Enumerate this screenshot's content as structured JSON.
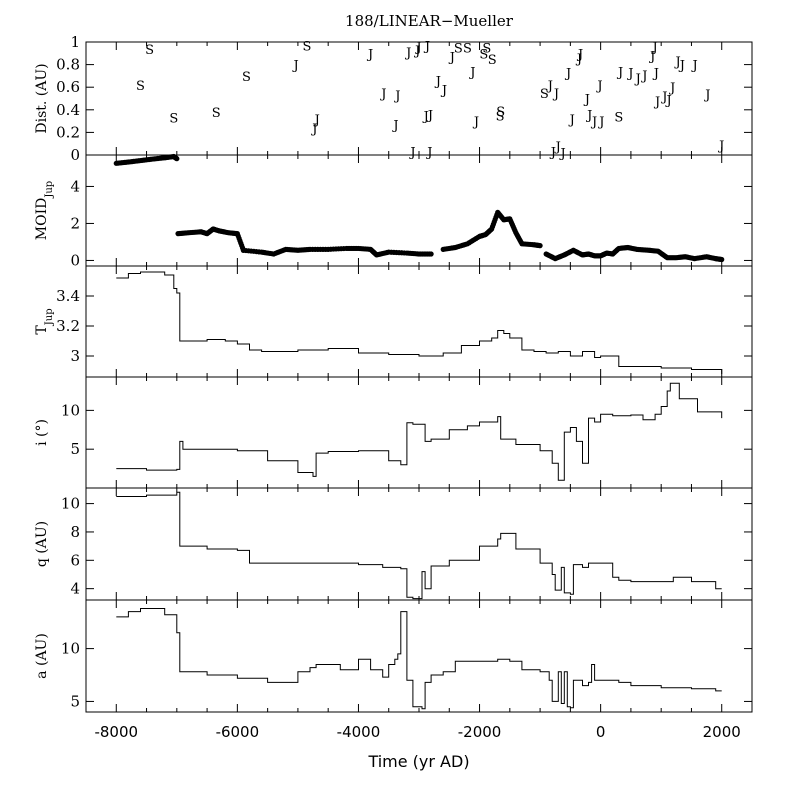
{
  "chart_data": {
    "title": "188/LINEAR−Mueller",
    "xlabel": "Time (yr AD)",
    "xlim": [
      -8500,
      2500
    ],
    "x_ticks": [
      -8000,
      -6000,
      -4000,
      -2000,
      0,
      2000
    ],
    "x_tick_labels": [
      "-8000",
      "-6000",
      "-4000",
      "-2000",
      "0",
      "2000"
    ],
    "panels": [
      {
        "id": "dist",
        "type": "scatter",
        "ylabel": "Dist. (AU)",
        "ylim": [
          0,
          1
        ],
        "y_ticks": [
          0,
          0.2,
          0.4,
          0.6,
          0.8,
          1
        ],
        "y_tick_labels": [
          "0",
          "0.2",
          "0.4",
          "0.6",
          "0.8",
          "1"
        ],
        "encounters": [
          {
            "x": -7450,
            "y": 0.94,
            "planet": "S"
          },
          {
            "x": -7600,
            "y": 0.62,
            "planet": "S"
          },
          {
            "x": -7050,
            "y": 0.33,
            "planet": "S"
          },
          {
            "x": -6350,
            "y": 0.38,
            "planet": "S"
          },
          {
            "x": -5850,
            "y": 0.7,
            "planet": "S"
          },
          {
            "x": -5030,
            "y": 0.8,
            "planet": "J"
          },
          {
            "x": -4850,
            "y": 0.97,
            "planet": "S"
          },
          {
            "x": -4680,
            "y": 0.32,
            "planet": "J"
          },
          {
            "x": -4720,
            "y": 0.24,
            "planet": "J"
          },
          {
            "x": -3800,
            "y": 0.9,
            "planet": "J"
          },
          {
            "x": -3580,
            "y": 0.55,
            "planet": "J"
          },
          {
            "x": -3350,
            "y": 0.53,
            "planet": "J"
          },
          {
            "x": -3380,
            "y": 0.27,
            "planet": "J"
          },
          {
            "x": -3170,
            "y": 0.91,
            "planet": "J"
          },
          {
            "x": -3020,
            "y": 0.93,
            "planet": "J"
          },
          {
            "x": -3000,
            "y": 0.96,
            "planet": "J"
          },
          {
            "x": -2860,
            "y": 0.97,
            "planet": "J"
          },
          {
            "x": -3100,
            "y": 0.03,
            "planet": "J"
          },
          {
            "x": -2880,
            "y": 0.35,
            "planet": "J"
          },
          {
            "x": -2810,
            "y": 0.36,
            "planet": "J"
          },
          {
            "x": -2680,
            "y": 0.66,
            "planet": "J"
          },
          {
            "x": -2580,
            "y": 0.58,
            "planet": "J"
          },
          {
            "x": -2450,
            "y": 0.87,
            "planet": "J"
          },
          {
            "x": -2350,
            "y": 0.95,
            "planet": "S"
          },
          {
            "x": -2200,
            "y": 0.95,
            "planet": "S"
          },
          {
            "x": -2110,
            "y": 0.74,
            "planet": "J"
          },
          {
            "x": -2050,
            "y": 0.3,
            "planet": "J"
          },
          {
            "x": -1880,
            "y": 0.95,
            "planet": "S"
          },
          {
            "x": -1930,
            "y": 0.9,
            "planet": "S"
          },
          {
            "x": -1790,
            "y": 0.85,
            "planet": "S"
          },
          {
            "x": -1650,
            "y": 0.39,
            "planet": "S"
          },
          {
            "x": -1660,
            "y": 0.35,
            "planet": "S"
          },
          {
            "x": -2820,
            "y": 0.03,
            "planet": "J"
          },
          {
            "x": -930,
            "y": 0.55,
            "planet": "S"
          },
          {
            "x": -830,
            "y": 0.62,
            "planet": "J"
          },
          {
            "x": -730,
            "y": 0.55,
            "planet": "J"
          },
          {
            "x": -780,
            "y": 0.03,
            "planet": "J"
          },
          {
            "x": -700,
            "y": 0.08,
            "planet": "J"
          },
          {
            "x": -620,
            "y": 0.02,
            "planet": "J"
          },
          {
            "x": -530,
            "y": 0.73,
            "planet": "J"
          },
          {
            "x": -470,
            "y": 0.32,
            "planet": "J"
          },
          {
            "x": -350,
            "y": 0.86,
            "planet": "J"
          },
          {
            "x": -330,
            "y": 0.9,
            "planet": "J"
          },
          {
            "x": -220,
            "y": 0.5,
            "planet": "J"
          },
          {
            "x": -180,
            "y": 0.36,
            "planet": "J"
          },
          {
            "x": -100,
            "y": 0.3,
            "planet": "J"
          },
          {
            "x": 20,
            "y": 0.3,
            "planet": "J"
          },
          {
            "x": -10,
            "y": 0.62,
            "planet": "J"
          },
          {
            "x": 300,
            "y": 0.34,
            "planet": "S"
          },
          {
            "x": 330,
            "y": 0.74,
            "planet": "J"
          },
          {
            "x": 500,
            "y": 0.73,
            "planet": "J"
          },
          {
            "x": 620,
            "y": 0.68,
            "planet": "J"
          },
          {
            "x": 730,
            "y": 0.71,
            "planet": "J"
          },
          {
            "x": 860,
            "y": 0.88,
            "planet": "J"
          },
          {
            "x": 900,
            "y": 0.96,
            "planet": "J"
          },
          {
            "x": 920,
            "y": 0.73,
            "planet": "J"
          },
          {
            "x": 940,
            "y": 0.48,
            "planet": "J"
          },
          {
            "x": 1060,
            "y": 0.52,
            "planet": "J"
          },
          {
            "x": 1130,
            "y": 0.49,
            "planet": "J"
          },
          {
            "x": 1190,
            "y": 0.6,
            "planet": "J"
          },
          {
            "x": 1280,
            "y": 0.83,
            "planet": "J"
          },
          {
            "x": 1350,
            "y": 0.8,
            "planet": "J"
          },
          {
            "x": 1560,
            "y": 0.8,
            "planet": "J"
          },
          {
            "x": 1770,
            "y": 0.54,
            "planet": "J"
          },
          {
            "x": 2000,
            "y": 0.09,
            "planet": "J"
          }
        ]
      },
      {
        "id": "moid",
        "type": "scatter",
        "ylabel": "MOID",
        "ylabel_subscript": "Jup",
        "ylim": [
          -0.3,
          5.7
        ],
        "y_ticks": [
          0,
          2,
          4
        ],
        "y_tick_labels": [
          "0",
          "2",
          "4"
        ],
        "segments": [
          {
            "x": [
              -8000,
              -7800,
              -7600,
              -7400,
              -7200,
              -7050,
              -7000
            ],
            "y": [
              5.25,
              5.32,
              5.4,
              5.48,
              5.55,
              5.62,
              5.5
            ]
          },
          {
            "x": [
              -6980,
              -6800,
              -6600,
              -6500,
              -6400,
              -6300,
              -6150,
              -6000,
              -5900
            ],
            "y": [
              1.45,
              1.5,
              1.55,
              1.45,
              1.7,
              1.6,
              1.5,
              1.45,
              0.55
            ]
          },
          {
            "x": [
              -5900,
              -5600,
              -5400,
              -5200,
              -5000,
              -4800,
              -4500,
              -4200,
              -4000,
              -3800,
              -3700,
              -3500,
              -3200,
              -3000,
              -2800
            ],
            "y": [
              0.55,
              0.45,
              0.35,
              0.6,
              0.55,
              0.6,
              0.6,
              0.65,
              0.65,
              0.6,
              0.3,
              0.45,
              0.4,
              0.35,
              0.35
            ]
          },
          {
            "x": [
              -2600,
              -2400,
              -2200,
              -2000,
              -1900,
              -1800,
              -1700,
              -1600,
              -1500,
              -1400,
              -1300,
              -1100,
              -1000
            ],
            "y": [
              0.6,
              0.7,
              0.9,
              1.3,
              1.4,
              1.7,
              2.6,
              2.2,
              2.25,
              1.5,
              0.9,
              0.85,
              0.8
            ]
          },
          {
            "x": [
              -900,
              -750,
              -600,
              -450,
              -300,
              -200,
              -100,
              0,
              100,
              200,
              300,
              450,
              600,
              800,
              950,
              1100,
              1250,
              1400,
              1550,
              1750,
              1900,
              2000
            ],
            "y": [
              0.35,
              0.1,
              0.3,
              0.55,
              0.3,
              0.35,
              0.25,
              0.25,
              0.4,
              0.35,
              0.65,
              0.7,
              0.6,
              0.55,
              0.5,
              0.15,
              0.15,
              0.2,
              0.1,
              0.2,
              0.1,
              0.05
            ]
          }
        ]
      },
      {
        "id": "tjup",
        "type": "line",
        "ylabel": "T",
        "ylabel_subscript": "Jup",
        "ylim": [
          2.86,
          3.6
        ],
        "y_ticks": [
          3,
          3.2,
          3.4
        ],
        "y_tick_labels": [
          "3",
          "3.2",
          "3.4"
        ],
        "x": [
          -8000,
          -7800,
          -7600,
          -7200,
          -7050,
          -7000,
          -6950,
          -6500,
          -6200,
          -6000,
          -5800,
          -5600,
          -5000,
          -4500,
          -4000,
          -3500,
          -3000,
          -2600,
          -2300,
          -2000,
          -1800,
          -1700,
          -1600,
          -1500,
          -1300,
          -1100,
          -900,
          -700,
          -500,
          -300,
          -100,
          0,
          100,
          200,
          300,
          500,
          1000,
          1500,
          2000
        ],
        "y": [
          3.52,
          3.55,
          3.56,
          3.54,
          3.45,
          3.42,
          3.1,
          3.11,
          3.1,
          3.08,
          3.04,
          3.03,
          3.04,
          3.05,
          3.02,
          3.01,
          3.0,
          3.02,
          3.07,
          3.1,
          3.12,
          3.17,
          3.15,
          3.12,
          3.04,
          3.03,
          3.02,
          3.03,
          3.0,
          3.03,
          2.99,
          3.0,
          3.0,
          3.0,
          2.93,
          2.93,
          2.92,
          2.91,
          2.88
        ]
      },
      {
        "id": "incl",
        "type": "line",
        "ylabel": "i (°)",
        "ylim": [
          0,
          14.3
        ],
        "y_ticks": [
          5,
          10
        ],
        "y_tick_labels": [
          "5",
          "10"
        ],
        "x": [
          -8000,
          -7500,
          -7000,
          -6950,
          -6900,
          -6000,
          -5500,
          -5000,
          -4750,
          -4700,
          -4500,
          -4000,
          -3500,
          -3300,
          -3200,
          -3100,
          -2900,
          -2800,
          -2500,
          -2200,
          -2000,
          -1700,
          -1650,
          -1400,
          -1000,
          -800,
          -700,
          -600,
          -500,
          -400,
          -300,
          -200,
          -100,
          0,
          200,
          500,
          700,
          900,
          1000,
          1100,
          1150,
          1300,
          1600,
          2000
        ],
        "y": [
          2.5,
          2.3,
          2.4,
          6.0,
          5.0,
          4.8,
          3.5,
          2.0,
          1.5,
          4.5,
          4.7,
          4.8,
          3.5,
          3.0,
          8.4,
          8.2,
          6.0,
          6.3,
          7.5,
          8.0,
          8.5,
          9.2,
          6.3,
          5.6,
          4.8,
          3.2,
          1.0,
          7.2,
          7.8,
          6.0,
          3.2,
          9.0,
          8.5,
          9.5,
          9.3,
          9.4,
          8.8,
          9.5,
          10.5,
          12.5,
          13.5,
          11.5,
          9.8,
          9.0
        ]
      },
      {
        "id": "q",
        "type": "line",
        "ylabel": "q (AU)",
        "ylim": [
          3.2,
          11.1
        ],
        "y_ticks": [
          4,
          6,
          8,
          10
        ],
        "y_tick_labels": [
          "4",
          "6",
          "8",
          "10"
        ],
        "x": [
          -8000,
          -7500,
          -7050,
          -7000,
          -6950,
          -6500,
          -6000,
          -5800,
          -5500,
          -5000,
          -4500,
          -4000,
          -3600,
          -3300,
          -3200,
          -3100,
          -2950,
          -2900,
          -2800,
          -2500,
          -2000,
          -1700,
          -1650,
          -1400,
          -1000,
          -800,
          -750,
          -650,
          -600,
          -500,
          -450,
          -300,
          -200,
          0,
          200,
          300,
          500,
          1000,
          1200,
          1500,
          1900,
          2000
        ],
        "y": [
          10.5,
          10.6,
          10.6,
          10.8,
          7.0,
          6.8,
          6.7,
          5.8,
          5.8,
          5.8,
          5.8,
          5.7,
          5.5,
          5.4,
          3.4,
          3.3,
          5.2,
          4.0,
          5.6,
          6.0,
          7.0,
          7.5,
          7.9,
          6.8,
          5.8,
          5.0,
          3.9,
          5.5,
          3.7,
          3.6,
          5.7,
          5.5,
          5.8,
          5.8,
          4.8,
          4.6,
          4.5,
          4.5,
          4.8,
          4.5,
          4.0,
          4.0
        ]
      },
      {
        "id": "a",
        "type": "line",
        "ylabel": "a (AU)",
        "ylim": [
          4.0,
          14.6
        ],
        "y_ticks": [
          5,
          10
        ],
        "y_tick_labels": [
          "5",
          "10"
        ],
        "x": [
          -8000,
          -7800,
          -7600,
          -7200,
          -7000,
          -6950,
          -6500,
          -6000,
          -5500,
          -5000,
          -4800,
          -4700,
          -4300,
          -4000,
          -3800,
          -3600,
          -3500,
          -3400,
          -3350,
          -3300,
          -3200,
          -3100,
          -2950,
          -2900,
          -2800,
          -2600,
          -2400,
          -2000,
          -1700,
          -1500,
          -1300,
          -1000,
          -850,
          -800,
          -700,
          -650,
          -600,
          -550,
          -500,
          -450,
          -400,
          -300,
          -200,
          -150,
          -100,
          0,
          300,
          500,
          1000,
          1500,
          1900,
          2000
        ],
        "y": [
          13.0,
          13.5,
          13.8,
          13.2,
          11.5,
          7.8,
          7.5,
          7.2,
          6.8,
          7.8,
          8.2,
          8.5,
          8.0,
          9.0,
          8.0,
          7.3,
          8.5,
          9.0,
          9.5,
          13.5,
          7.0,
          4.5,
          4.3,
          6.8,
          7.5,
          7.8,
          8.8,
          8.8,
          9.0,
          8.8,
          8.0,
          7.8,
          7.0,
          5.0,
          7.8,
          4.8,
          7.8,
          4.5,
          4.4,
          7.0,
          7.0,
          6.5,
          6.8,
          8.5,
          7.0,
          7.0,
          6.8,
          6.5,
          6.3,
          6.2,
          6.0,
          6.0
        ]
      }
    ]
  }
}
